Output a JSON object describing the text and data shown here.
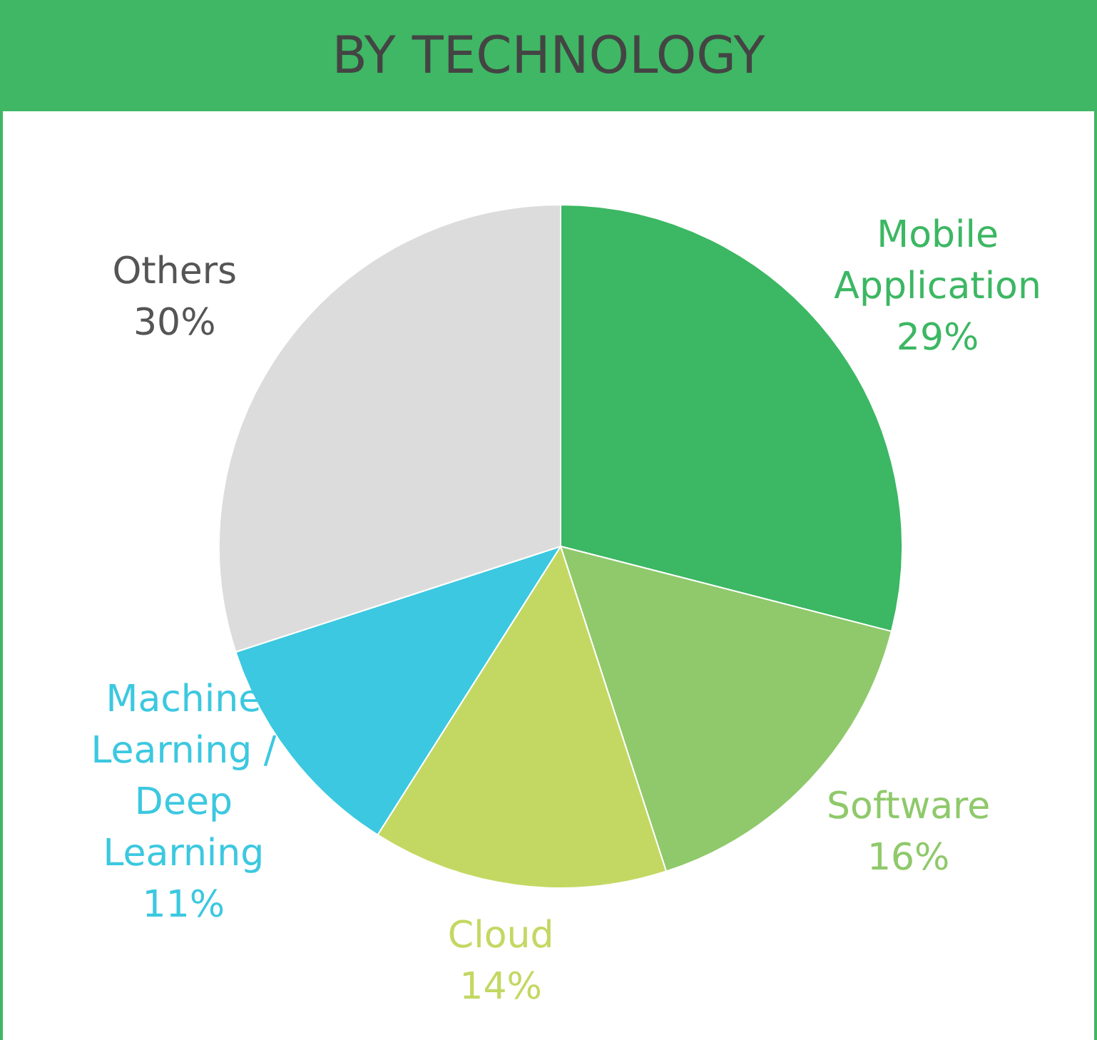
{
  "chart_data": {
    "type": "pie",
    "title": "BY TECHNOLOGY",
    "categories": [
      "Mobile Application",
      "Software",
      "Cloud",
      "Machine Learning / Deep Learning",
      "Others"
    ],
    "values": [
      29,
      16,
      14,
      11,
      30
    ],
    "value_labels": [
      "29%",
      "16%",
      "14%",
      "11%",
      "30%"
    ],
    "colors": [
      "#3cb763",
      "#8fc96b",
      "#c3d862",
      "#3cc8e0",
      "#dcdcdc"
    ],
    "legend": false
  }
}
